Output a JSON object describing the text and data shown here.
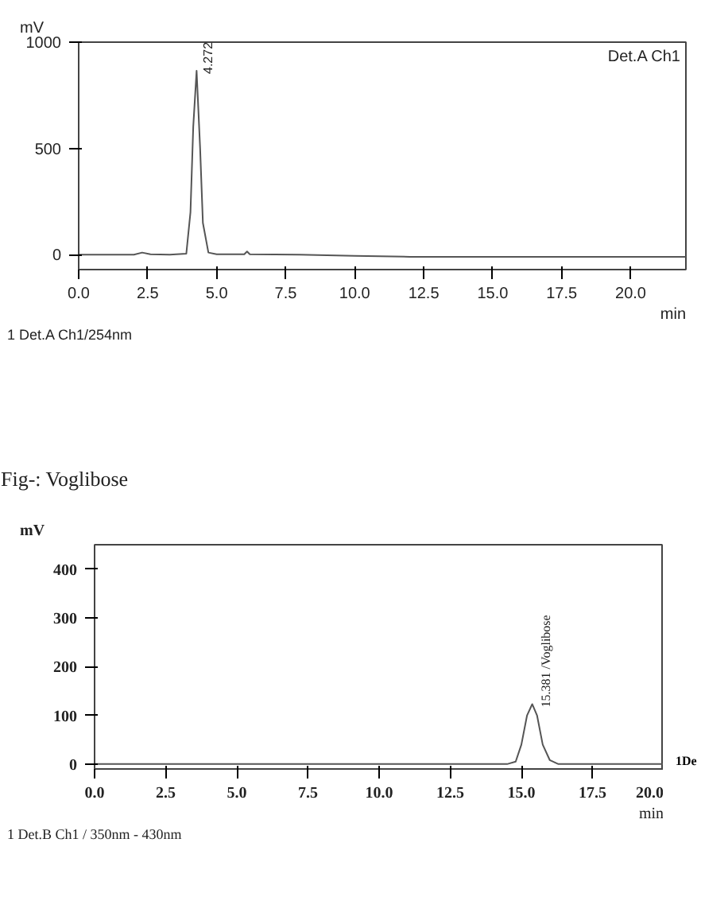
{
  "chart_data": [
    {
      "type": "line",
      "xlabel": "min",
      "ylabel": "mV",
      "xlim": [
        0,
        22
      ],
      "ylim": [
        -70,
        1000
      ],
      "xticks": [
        {
          "value": 0,
          "label": "0.0"
        },
        {
          "value": 2.5,
          "label": "2.5"
        },
        {
          "value": 5,
          "label": "5.0"
        },
        {
          "value": 7.5,
          "label": "7.5"
        },
        {
          "value": 10,
          "label": "10.0"
        },
        {
          "value": 12.5,
          "label": "12.5"
        },
        {
          "value": 15,
          "label": "15.0"
        },
        {
          "value": 17.5,
          "label": "17.5"
        },
        {
          "value": 20,
          "label": "20.0"
        }
      ],
      "yticks": [
        0,
        500,
        1000
      ],
      "grid": false,
      "marker": "none",
      "line_style": "solid",
      "series": [
        {
          "color": "#555555",
          "x": [
            0,
            2.0,
            2.3,
            2.6,
            3.3,
            3.9,
            4.05,
            4.15,
            4.272,
            4.4,
            4.5,
            4.7,
            5.0,
            6.0,
            6.1,
            6.2,
            8,
            10,
            12,
            15,
            20,
            22
          ],
          "values": [
            0,
            0,
            10,
            2,
            0,
            5,
            200,
            600,
            865,
            500,
            150,
            10,
            2,
            2,
            15,
            2,
            0,
            -5,
            -10,
            -10,
            -10,
            -10
          ]
        }
      ],
      "annotations": [
        "1 Det.A Ch1/254nm",
        "Det.A Ch1",
        {
          "text": "4.272",
          "x": 4.272,
          "y": 865
        }
      ]
    },
    {
      "type": "line",
      "title": "Fig-: Voglibose",
      "xlabel": "min",
      "ylabel": "mV",
      "xlim": [
        0,
        20
      ],
      "ylim": [
        -10,
        450
      ],
      "xticks": [
        {
          "value": 0,
          "label": "0.0"
        },
        {
          "value": 2.5,
          "label": "2.5"
        },
        {
          "value": 5,
          "label": "5.0"
        },
        {
          "value": 7.5,
          "label": "7.5"
        },
        {
          "value": 10,
          "label": "10.0"
        },
        {
          "value": 12.5,
          "label": "12.5"
        },
        {
          "value": 15,
          "label": "15.0"
        },
        {
          "value": 17.5,
          "label": "17.5"
        },
        {
          "value": 20,
          "label": "20.0"
        }
      ],
      "yticks": [
        0,
        100,
        200,
        300,
        400
      ],
      "grid": false,
      "marker": "none",
      "line_style": "solid",
      "series": [
        {
          "color": "#555555",
          "x": [
            0,
            14.5,
            14.8,
            15.0,
            15.2,
            15.381,
            15.55,
            15.75,
            16.0,
            16.3,
            20
          ],
          "values": [
            0,
            0,
            5,
            40,
            100,
            123,
            100,
            40,
            8,
            0,
            0
          ]
        }
      ],
      "annotations": [
        "1 Det.B Ch1 / 350nm - 430nm",
        "1De",
        {
          "text": "15.381 /Voglibose",
          "x": 15.381,
          "y": 123
        }
      ]
    }
  ]
}
